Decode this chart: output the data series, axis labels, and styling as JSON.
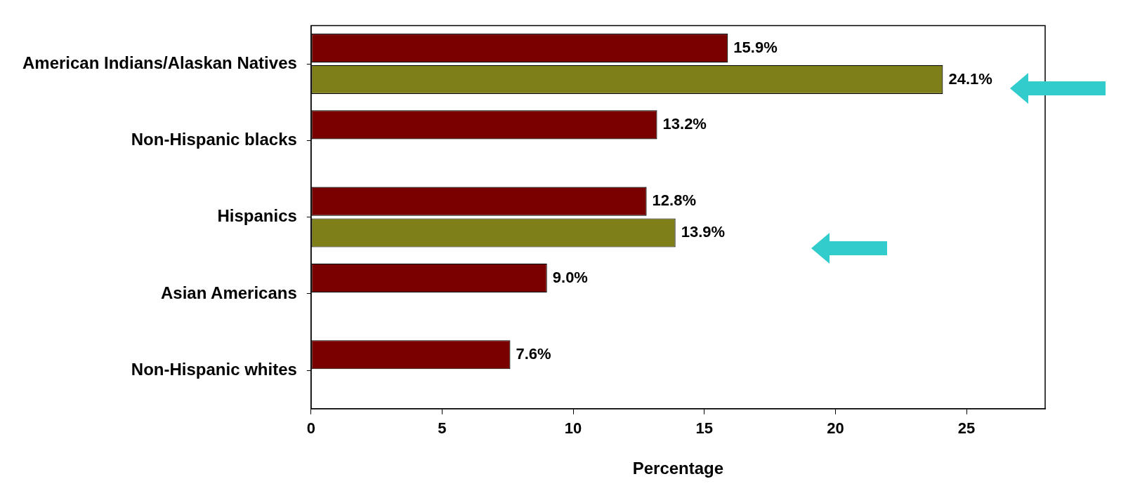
{
  "chart_data": {
    "type": "bar",
    "orientation": "horizontal",
    "xlabel": "Percentage",
    "categories": [
      "American Indians/Alaskan Natives",
      "Non-Hispanic blacks",
      "Hispanics",
      "Asian Americans",
      "Non-Hispanic whites"
    ],
    "series": [
      {
        "color": "#7a0000",
        "values": [
          15.9,
          13.2,
          12.8,
          9.0,
          7.6
        ],
        "value_labels": [
          "15.9%",
          "13.2%",
          "12.8%",
          "9.0%",
          "7.6%"
        ]
      },
      {
        "color": "#7f7f1a",
        "values": [
          24.1,
          null,
          13.9,
          null,
          null
        ],
        "value_labels": [
          "24.1%",
          null,
          "13.9%",
          null,
          null
        ]
      }
    ],
    "xlim": [
      0,
      28
    ],
    "xticks": [
      0,
      5,
      10,
      15,
      20,
      25
    ],
    "grid": false,
    "legend": false
  }
}
